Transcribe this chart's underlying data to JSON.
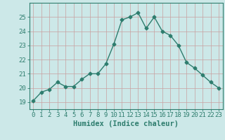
{
  "x": [
    0,
    1,
    2,
    3,
    4,
    5,
    6,
    7,
    8,
    9,
    10,
    11,
    12,
    13,
    14,
    15,
    16,
    17,
    18,
    19,
    20,
    21,
    22,
    23
  ],
  "y": [
    19.1,
    19.7,
    19.9,
    20.4,
    20.1,
    20.1,
    20.6,
    21.0,
    21.0,
    21.7,
    23.1,
    24.8,
    25.0,
    25.3,
    24.2,
    25.0,
    24.0,
    23.7,
    23.0,
    21.8,
    21.4,
    20.9,
    20.4,
    20.0
  ],
  "line_color": "#2e7d6e",
  "marker": "D",
  "markersize": 2.5,
  "linewidth": 1.0,
  "bg_color": "#cce8e8",
  "grid_color": "#c8a0a0",
  "xlabel": "Humidex (Indice chaleur)",
  "ylim": [
    18.5,
    26.0
  ],
  "xlim": [
    -0.5,
    23.5
  ],
  "yticks": [
    19,
    20,
    21,
    22,
    23,
    24,
    25
  ],
  "xticks": [
    0,
    1,
    2,
    3,
    4,
    5,
    6,
    7,
    8,
    9,
    10,
    11,
    12,
    13,
    14,
    15,
    16,
    17,
    18,
    19,
    20,
    21,
    22,
    23
  ],
  "tick_fontsize": 6.5,
  "xlabel_fontsize": 7.5
}
